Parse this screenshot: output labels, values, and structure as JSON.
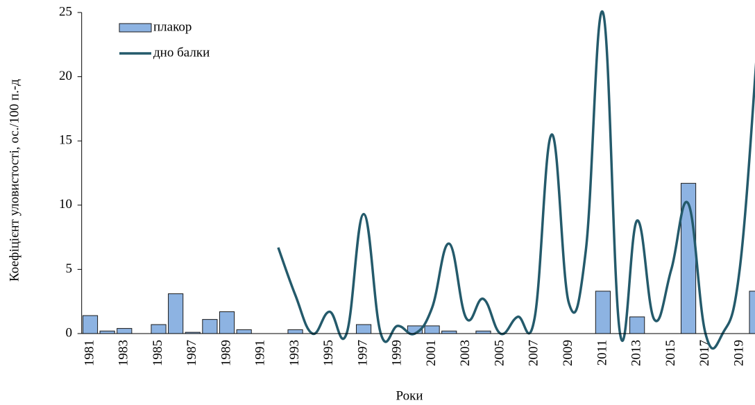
{
  "chart_data": {
    "type": "bar-line",
    "x_label": "Роки",
    "y_label": "Коефіцієнт уловистості, ос./100 п.-д",
    "categories": [
      "1981",
      null,
      "1983",
      null,
      "1985",
      null,
      "1987",
      null,
      "1989",
      null,
      "1991",
      null,
      "1993",
      null,
      "1995",
      null,
      "1997",
      null,
      "1999",
      null,
      "2001",
      null,
      "2003",
      null,
      "2005",
      null,
      "2007",
      null,
      "2009",
      null,
      "2011",
      null,
      "2013",
      null,
      "2015",
      null,
      "2017",
      null,
      "2019",
      null
    ],
    "series": [
      {
        "name": "плакор",
        "type": "bar",
        "color": "#8db3e2",
        "values": [
          1.4,
          0.2,
          0.4,
          0,
          0.7,
          3.1,
          0.1,
          1.1,
          1.7,
          0.3,
          0,
          0,
          0.3,
          0,
          0,
          0,
          0.7,
          0,
          0,
          0.6,
          0.6,
          0.2,
          0,
          0.2,
          0,
          0,
          0,
          0,
          0,
          0,
          3.3,
          0,
          1.3,
          0,
          0,
          11.7,
          0,
          0,
          0,
          3.3
        ]
      },
      {
        "name": "дно балки",
        "type": "line",
        "color": "#245a6b",
        "values": [
          null,
          null,
          null,
          null,
          null,
          null,
          null,
          null,
          null,
          null,
          null,
          6.7,
          3.0,
          0,
          1.7,
          0,
          9.3,
          0,
          0.6,
          0,
          2.0,
          7.0,
          1.2,
          2.7,
          0,
          1.3,
          1.2,
          15.5,
          2.4,
          6.5,
          25,
          0,
          8.8,
          1.1,
          5.0,
          10.1,
          0,
          0,
          5.0,
          21.7
        ]
      }
    ],
    "ylim": [
      0,
      25
    ],
    "yticks": [
      0,
      5,
      10,
      15,
      20,
      25
    ],
    "grid": false
  }
}
